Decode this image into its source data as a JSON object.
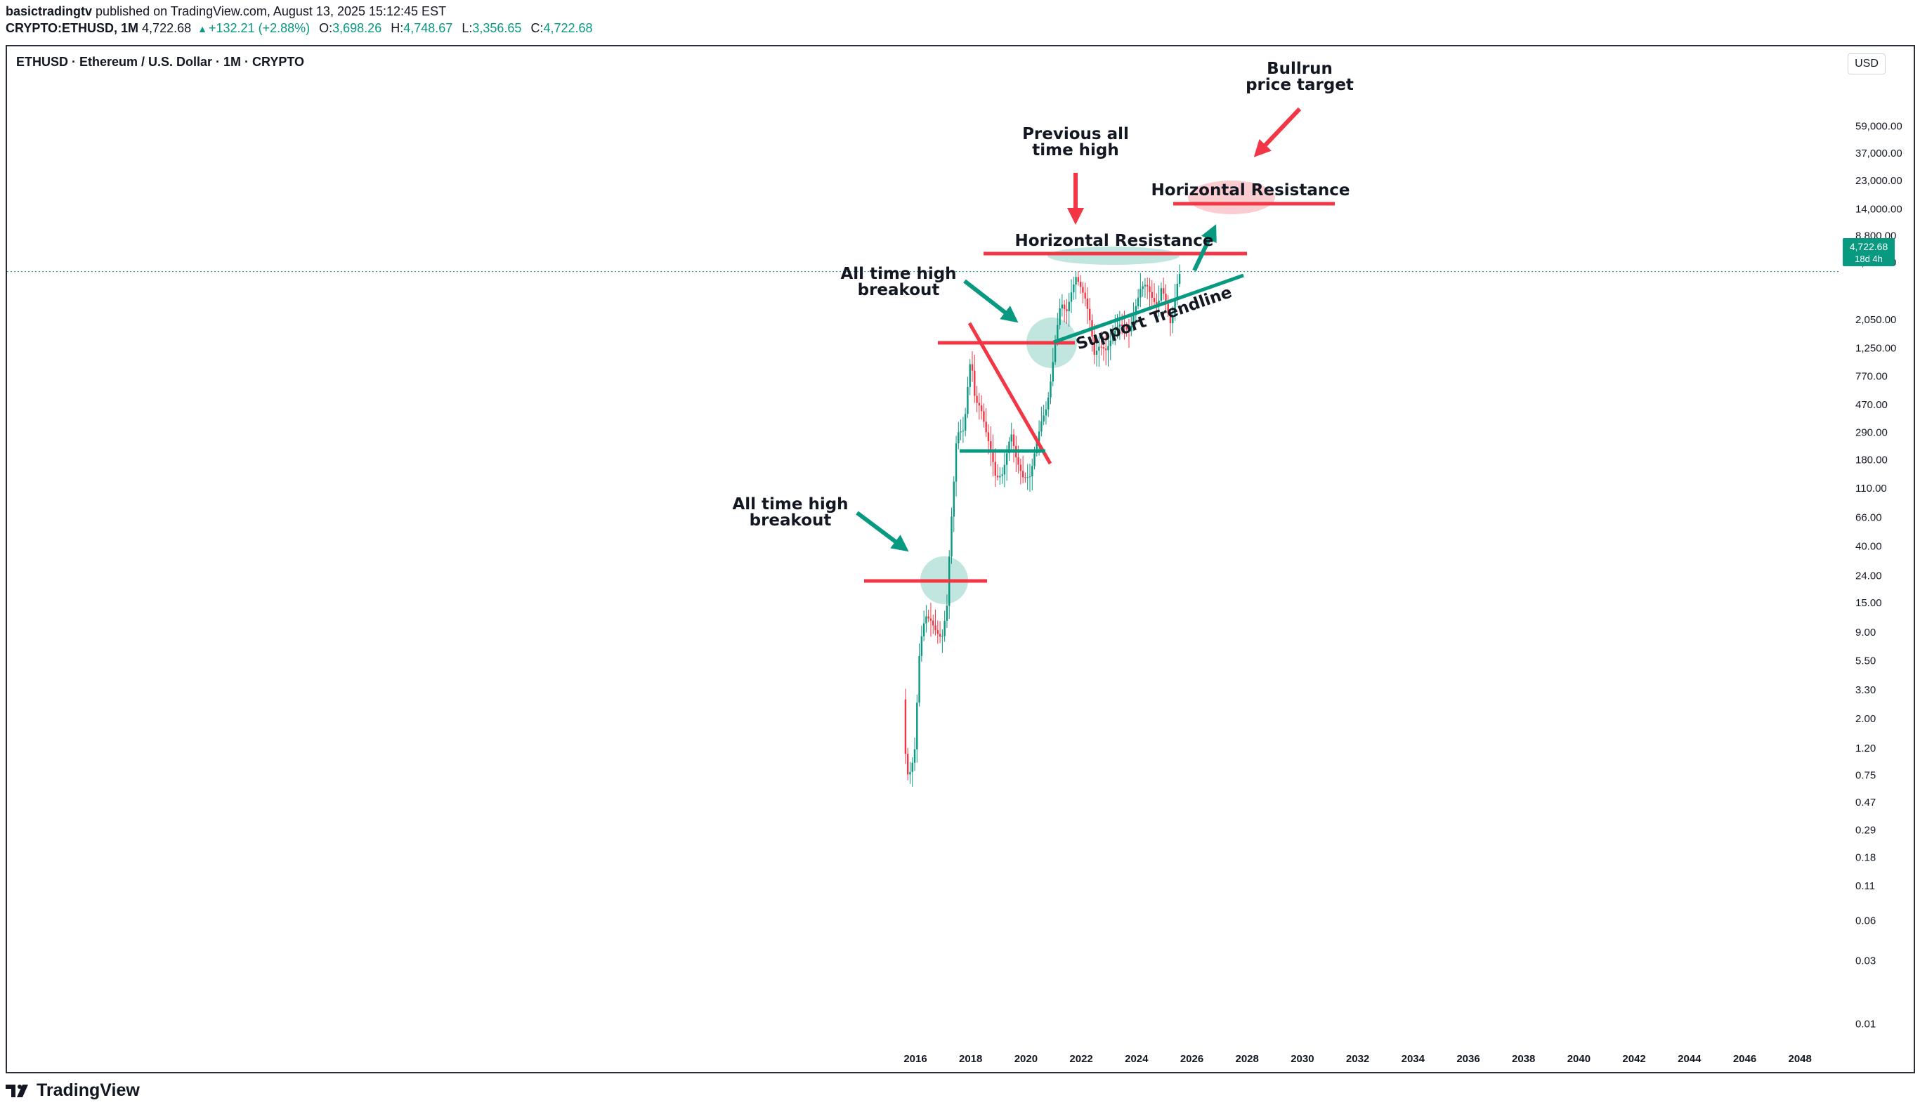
{
  "header": {
    "author": "basictradingtv",
    "published_text": "published on TradingView.com, August 13, 2025 15:12:45 EST",
    "symbol": "CRYPTO:ETHUSD, 1M",
    "last_price": "4,722.68",
    "change": "+132.21 (+2.88%)",
    "open_label": "O:",
    "open": "3,698.26",
    "high_label": "H:",
    "high": "4,748.67",
    "low_label": "L:",
    "low": "3,356.65",
    "close_label": "C:",
    "close": "4,722.68"
  },
  "chart_title": "ETHUSD · Ethereum / U.S. Dollar · 1M · CRYPTO",
  "currency_button": "USD",
  "price_badge": {
    "price": "4,722.68",
    "countdown": "18d 4h",
    "color": "#089981"
  },
  "brand": "TradingView",
  "annotations": {
    "ath_breakout_1": [
      "All time high",
      "breakout"
    ],
    "ath_breakout_2": [
      "All time high",
      "breakout"
    ],
    "prev_ath": [
      "Previous all",
      "time high"
    ],
    "bullrun": [
      "Bullrun",
      "price target"
    ],
    "horizontal_resistance_1": "Horizontal Resistance",
    "horizontal_resistance_2": "Horizontal Resistance",
    "support_trendline": "Support Trendline"
  },
  "colors": {
    "up": "#089981",
    "down": "#f23645",
    "resistance": "#f23645",
    "support": "#089981"
  },
  "chart_data": {
    "type": "candlestick",
    "title": "ETHUSD · Ethereum / U.S. Dollar · 1M · CRYPTO",
    "y_scale": "log",
    "y_ticks": [
      "59,000.00",
      "37,000.00",
      "23,000.00",
      "14,000.00",
      "8,800.00",
      "5,550.00",
      "2,050.00",
      "1,250.00",
      "770.00",
      "470.00",
      "290.00",
      "180.00",
      "110.00",
      "66.00",
      "40.00",
      "24.00",
      "15.00",
      "9.00",
      "5.50",
      "3.30",
      "2.00",
      "1.20",
      "0.75",
      "0.47",
      "0.29",
      "0.18",
      "0.11",
      "0.06",
      "0.03",
      "0.01"
    ],
    "x_ticks": [
      "2016",
      "2018",
      "2020",
      "2022",
      "2024",
      "2026",
      "2028",
      "2030",
      "2032",
      "2034",
      "2036",
      "2038",
      "2040",
      "2042",
      "2044",
      "2046",
      "2048"
    ],
    "price_path": [
      [
        2015.6,
        2.8
      ],
      [
        2015.7,
        0.9
      ],
      [
        2015.8,
        0.7
      ],
      [
        2015.9,
        0.9
      ],
      [
        2016.0,
        1.0
      ],
      [
        2016.2,
        7.0
      ],
      [
        2016.4,
        12.0
      ],
      [
        2016.6,
        11.0
      ],
      [
        2016.8,
        9.0
      ],
      [
        2017.0,
        8.0
      ],
      [
        2017.2,
        15.0
      ],
      [
        2017.3,
        50.0
      ],
      [
        2017.4,
        90.0
      ],
      [
        2017.5,
        230.0
      ],
      [
        2017.6,
        290.0
      ],
      [
        2017.8,
        300.0
      ],
      [
        2017.95,
        700.0
      ],
      [
        2018.05,
        1100.0
      ],
      [
        2018.2,
        500.0
      ],
      [
        2018.4,
        450.0
      ],
      [
        2018.6,
        290.0
      ],
      [
        2018.8,
        200.0
      ],
      [
        2018.95,
        130.0
      ],
      [
        2019.2,
        140.0
      ],
      [
        2019.5,
        290.0
      ],
      [
        2019.7,
        180.0
      ],
      [
        2019.95,
        130.0
      ],
      [
        2020.2,
        135.0
      ],
      [
        2020.4,
        230.0
      ],
      [
        2020.6,
        350.0
      ],
      [
        2020.8,
        450.0
      ],
      [
        2020.95,
        740.0
      ],
      [
        2021.1,
        1400.0
      ],
      [
        2021.3,
        2800.0
      ],
      [
        2021.5,
        2300.0
      ],
      [
        2021.7,
        3400.0
      ],
      [
        2021.85,
        4300.0
      ],
      [
        2022.0,
        3700.0
      ],
      [
        2022.2,
        2900.0
      ],
      [
        2022.4,
        1800.0
      ],
      [
        2022.5,
        1100.0
      ],
      [
        2022.7,
        1300.0
      ],
      [
        2022.95,
        1200.0
      ],
      [
        2023.2,
        1600.0
      ],
      [
        2023.4,
        1900.0
      ],
      [
        2023.6,
        1800.0
      ],
      [
        2023.8,
        1650.0
      ],
      [
        2023.95,
        2300.0
      ],
      [
        2024.2,
        3600.0
      ],
      [
        2024.4,
        3800.0
      ],
      [
        2024.6,
        3000.0
      ],
      [
        2024.8,
        2500.0
      ],
      [
        2024.95,
        3700.0
      ],
      [
        2025.1,
        2700.0
      ],
      [
        2025.3,
        1800.0
      ],
      [
        2025.4,
        2600.0
      ],
      [
        2025.5,
        3700.0
      ],
      [
        2025.62,
        4722.68
      ]
    ],
    "last_price": 4722.68
  }
}
